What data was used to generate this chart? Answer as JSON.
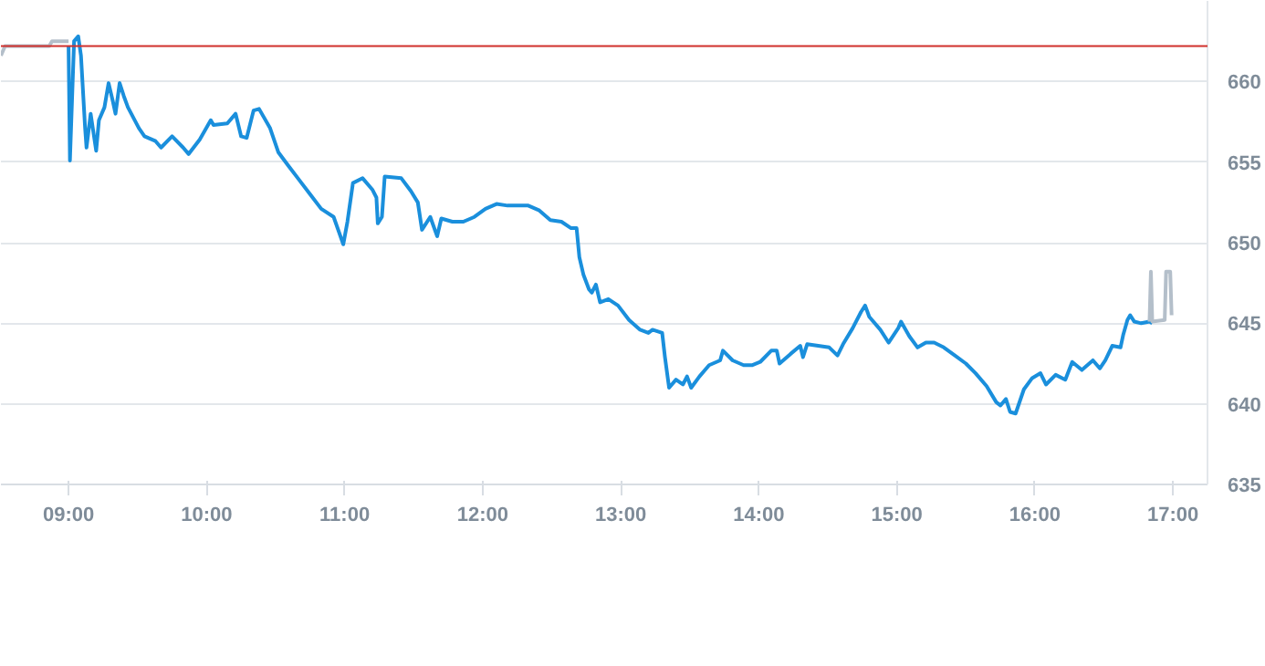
{
  "chart_data": {
    "type": "line",
    "xlim": [
      8.51,
      17.25
    ],
    "ylim": [
      635,
      665
    ],
    "xticks": [
      {
        "value": 9,
        "label": "09:00"
      },
      {
        "value": 10,
        "label": "10:00"
      },
      {
        "value": 11,
        "label": "11:00"
      },
      {
        "value": 12,
        "label": "12:00"
      },
      {
        "value": 13,
        "label": "13:00"
      },
      {
        "value": 14,
        "label": "14:00"
      },
      {
        "value": 15,
        "label": "15:00"
      },
      {
        "value": 16,
        "label": "16:00"
      },
      {
        "value": 17,
        "label": "17:00"
      }
    ],
    "yticks": [
      635,
      640,
      645,
      650,
      655,
      660
    ],
    "grid": "y",
    "ref_lines": [
      {
        "axis": "y",
        "value": 662.2,
        "label": null,
        "color": "#d0312d"
      }
    ],
    "series": [
      {
        "color": "#b4bfca",
        "x": [
          8.51,
          8.54,
          8.86,
          8.88,
          9.0
        ],
        "values": [
          661.6,
          662.2,
          662.2,
          662.5,
          662.5
        ]
      },
      {
        "color": "#1a8fdc",
        "x": [
          9.0,
          9.01,
          9.04,
          9.07,
          9.09,
          9.12,
          9.13,
          9.16,
          9.2,
          9.22,
          9.26,
          9.29,
          9.32,
          9.34,
          9.37,
          9.4,
          9.43,
          9.51,
          9.55,
          9.63,
          9.67,
          9.75,
          9.83,
          9.87,
          9.95,
          10.03,
          10.05,
          10.15,
          10.21,
          10.25,
          10.29,
          10.34,
          10.38,
          10.46,
          10.52,
          10.59,
          10.67,
          10.75,
          10.83,
          10.92,
          10.99,
          11.02,
          11.06,
          11.13,
          11.2,
          11.23,
          11.24,
          11.27,
          11.29,
          11.41,
          11.48,
          11.53,
          11.56,
          11.62,
          11.67,
          11.7,
          11.78,
          11.86,
          11.94,
          12.02,
          12.1,
          12.18,
          12.25,
          12.33,
          12.41,
          12.49,
          12.57,
          12.64,
          12.68,
          12.7,
          12.73,
          12.77,
          12.79,
          12.82,
          12.85,
          12.91,
          12.98,
          13.06,
          13.14,
          13.2,
          13.23,
          13.3,
          13.32,
          13.35,
          13.4,
          13.45,
          13.48,
          13.51,
          13.57,
          13.64,
          13.72,
          13.74,
          13.81,
          13.89,
          13.95,
          14.01,
          14.09,
          14.13,
          14.15,
          14.23,
          14.3,
          14.32,
          14.35,
          14.43,
          14.51,
          14.57,
          14.61,
          14.68,
          14.74,
          14.77,
          14.8,
          14.88,
          14.94,
          15.01,
          15.03,
          15.09,
          15.15,
          15.21,
          15.27,
          15.34,
          15.42,
          15.5,
          15.57,
          15.65,
          15.72,
          15.75,
          15.79,
          15.82,
          15.86,
          15.92,
          15.98,
          16.04,
          16.08,
          16.15,
          16.22,
          16.27,
          16.34,
          16.42,
          16.47,
          16.51,
          16.56,
          16.62,
          16.64,
          16.67,
          16.69,
          16.72,
          16.77,
          16.83,
          16.85
        ],
        "values": [
          662.2,
          655.1,
          662.5,
          662.8,
          661.6,
          657.1,
          655.9,
          658.0,
          655.7,
          657.6,
          658.4,
          659.9,
          658.8,
          658.0,
          659.9,
          659.1,
          658.4,
          657.1,
          656.6,
          656.3,
          655.9,
          656.6,
          655.9,
          655.5,
          656.4,
          657.6,
          657.3,
          657.4,
          658.0,
          656.6,
          656.5,
          658.2,
          658.3,
          657.1,
          655.6,
          654.8,
          653.9,
          653.0,
          652.1,
          651.6,
          649.9,
          651.3,
          653.7,
          654.0,
          653.3,
          652.8,
          651.2,
          651.6,
          654.1,
          654.0,
          653.2,
          652.5,
          650.8,
          651.6,
          650.4,
          651.5,
          651.3,
          651.3,
          651.6,
          652.1,
          652.4,
          652.3,
          652.3,
          652.3,
          652.0,
          651.4,
          651.3,
          650.9,
          650.9,
          649.1,
          648.0,
          647.1,
          646.9,
          647.4,
          646.3,
          646.5,
          646.1,
          645.2,
          644.6,
          644.4,
          644.6,
          644.4,
          642.9,
          641.0,
          641.5,
          641.2,
          641.7,
          641.0,
          641.7,
          642.4,
          642.7,
          643.3,
          642.7,
          642.4,
          642.4,
          642.6,
          643.3,
          643.3,
          642.5,
          643.1,
          643.6,
          642.9,
          643.7,
          643.6,
          643.5,
          643.0,
          643.7,
          644.7,
          645.7,
          646.1,
          645.4,
          644.6,
          643.8,
          644.7,
          645.1,
          644.2,
          643.5,
          643.8,
          643.8,
          643.5,
          643.0,
          642.5,
          641.9,
          641.1,
          640.1,
          639.9,
          640.3,
          639.5,
          639.4,
          640.9,
          641.6,
          641.9,
          641.2,
          641.8,
          641.5,
          642.6,
          642.1,
          642.7,
          642.2,
          642.7,
          643.6,
          643.5,
          644.3,
          645.2,
          645.5,
          645.1,
          645.0,
          645.1,
          645.0
        ]
      },
      {
        "color": "#b4bfca",
        "x": [
          16.83,
          16.84,
          16.85,
          16.94,
          16.95,
          16.98,
          16.99
        ],
        "values": [
          645.1,
          648.2,
          645.1,
          645.2,
          648.2,
          648.2,
          645.5
        ]
      }
    ]
  }
}
